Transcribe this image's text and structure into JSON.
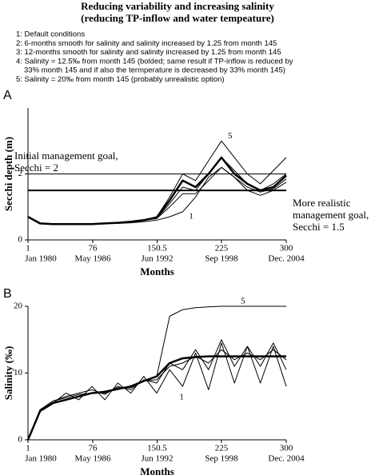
{
  "header": {
    "title_lines": [
      "Reducing variability and increasing salinity",
      "(reducing TP-inflow and water tempeature)"
    ],
    "notes": [
      "1: Default conditions",
      "2: 6-months smooth for salinity and salinity increased by 1.25 from month 145",
      "3: 12-months smooth for salinity and salinity increased by 1.25 from month 145",
      "4: Salinity = 12.5‰ from month 145 (bolded; same result if TP-inflow is reduced  by",
      "33% month 145 and if also the termperature is decreased by 33% month 145)",
      "5: Salinity = 20‰ from month 145 (probably unrealistic option)"
    ]
  },
  "chart_data": [
    {
      "type": "line",
      "panel_label": "A",
      "ylabel": "Secchi depth (m)",
      "xlabel": "Months",
      "xlim": [
        1,
        300
      ],
      "ylim": [
        0,
        4
      ],
      "yticks": [
        0,
        2
      ],
      "xticks": [
        1,
        76,
        150.5,
        225,
        300
      ],
      "xtick_dates": [
        "Jan 1980",
        "May 1986",
        "Jun 1992",
        "Sep 1998",
        "Dec. 2004"
      ],
      "x": [
        1,
        15,
        30,
        45,
        60,
        75,
        90,
        105,
        120,
        135,
        150,
        165,
        180,
        195,
        210,
        225,
        240,
        255,
        270,
        285,
        300
      ],
      "hlines": [
        {
          "value": 2,
          "linewidth": 1
        },
        {
          "value": 1.5,
          "linewidth": 2
        }
      ],
      "annotations": [
        [
          "Initial management goal,",
          "Secchi = 2"
        ],
        [
          "More realistic",
          "management goal,",
          "Secchi = 1.5"
        ]
      ],
      "series": [
        {
          "name": "1",
          "color": "#000000",
          "linewidth": 1,
          "values": [
            0.7,
            0.5,
            0.48,
            0.48,
            0.48,
            0.48,
            0.5,
            0.5,
            0.52,
            0.55,
            0.6,
            0.7,
            0.85,
            1.3,
            1.9,
            2.2,
            1.9,
            1.5,
            1.35,
            1.5,
            1.75
          ]
        },
        {
          "color": "#000000",
          "linewidth": 1,
          "values": [
            0.7,
            0.5,
            0.48,
            0.48,
            0.48,
            0.48,
            0.5,
            0.52,
            0.55,
            0.6,
            0.65,
            1.1,
            1.6,
            1.5,
            2.0,
            2.5,
            2.1,
            1.7,
            1.5,
            1.7,
            2.0
          ]
        },
        {
          "color": "#000000",
          "linewidth": 1,
          "values": [
            0.7,
            0.5,
            0.48,
            0.48,
            0.48,
            0.48,
            0.5,
            0.52,
            0.55,
            0.6,
            0.65,
            1.0,
            1.4,
            1.4,
            1.8,
            2.2,
            1.9,
            1.6,
            1.45,
            1.55,
            1.85
          ]
        },
        {
          "color": "#000000",
          "linewidth": 2.5,
          "values": [
            0.7,
            0.5,
            0.48,
            0.48,
            0.48,
            0.48,
            0.5,
            0.52,
            0.55,
            0.6,
            0.68,
            1.2,
            1.8,
            1.6,
            2.0,
            2.5,
            2.0,
            1.7,
            1.5,
            1.6,
            1.95
          ]
        },
        {
          "name": "5",
          "color": "#000000",
          "linewidth": 1,
          "values": [
            0.7,
            0.5,
            0.48,
            0.48,
            0.48,
            0.48,
            0.5,
            0.52,
            0.55,
            0.6,
            0.7,
            1.3,
            2.0,
            1.8,
            2.4,
            3.0,
            2.5,
            2.0,
            1.7,
            2.1,
            2.5
          ]
        }
      ]
    },
    {
      "type": "line",
      "panel_label": "B",
      "ylabel": "Salinity (‰)",
      "xlabel": "Months",
      "xlim": [
        1,
        300
      ],
      "ylim": [
        0,
        20
      ],
      "yticks": [
        0,
        10,
        20
      ],
      "xticks": [
        1,
        76,
        150.5,
        225,
        300
      ],
      "xtick_dates": [
        "Jan 1980",
        "May 1986",
        "Jun 1992",
        "Sep 1998",
        "Dec. 2004"
      ],
      "x": [
        1,
        15,
        30,
        45,
        60,
        75,
        90,
        105,
        120,
        135,
        150,
        165,
        180,
        195,
        210,
        225,
        240,
        255,
        270,
        285,
        300
      ],
      "series": [
        {
          "name": "1",
          "color": "#000000",
          "linewidth": 1,
          "values": [
            0,
            4.5,
            5.5,
            7,
            6,
            8,
            6,
            8.5,
            7,
            9.5,
            7,
            10.5,
            8,
            13,
            7.5,
            14.5,
            8.5,
            14,
            8.5,
            14,
            8
          ]
        },
        {
          "color": "#000000",
          "linewidth": 1,
          "values": [
            0,
            4.5,
            5.8,
            6.5,
            7,
            7.5,
            6.8,
            8,
            7.5,
            9,
            8.5,
            11.5,
            10.5,
            13.5,
            10.5,
            15,
            11,
            14,
            11,
            14.5,
            10.5
          ]
        },
        {
          "color": "#000000",
          "linewidth": 1,
          "values": [
            0,
            4.5,
            5.8,
            6.3,
            6.8,
            7,
            7,
            7.8,
            7.8,
            8.8,
            9,
            11,
            11.5,
            12.5,
            11.5,
            13.5,
            12,
            13,
            12,
            13.5,
            12
          ]
        },
        {
          "color": "#000000",
          "linewidth": 2.5,
          "values": [
            0,
            4.3,
            5.5,
            6,
            6.5,
            7,
            7.2,
            7.6,
            8,
            8.8,
            9.5,
            11.5,
            12.2,
            12.4,
            12.5,
            12.5,
            12.5,
            12.5,
            12.5,
            12.5,
            12.5
          ]
        },
        {
          "name": "5",
          "color": "#000000",
          "linewidth": 1,
          "values": [
            0,
            4.3,
            5.5,
            6,
            6.5,
            7,
            7.2,
            7.6,
            8,
            8.8,
            9.5,
            18.5,
            19.5,
            19.8,
            19.9,
            20,
            20,
            20,
            20,
            20,
            20
          ]
        }
      ]
    }
  ]
}
